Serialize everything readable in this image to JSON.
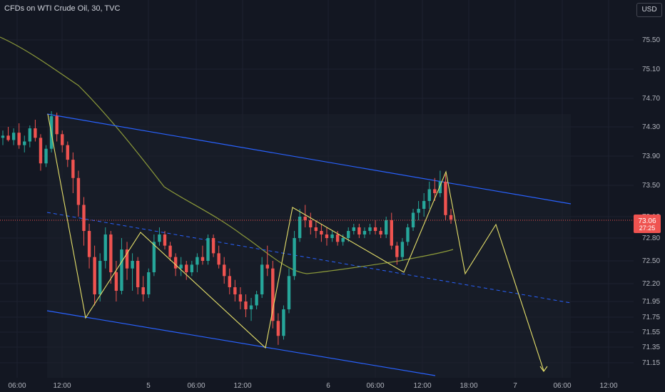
{
  "header": {
    "title": "CFDs on WTI Crude Oil, 30, TVC",
    "currency_button": "USD"
  },
  "chart_data": {
    "type": "candlestick",
    "title": "CFDs on WTI Crude Oil, 30, TVC",
    "y_ticks": [
      "75.50",
      "75.10",
      "74.70",
      "74.30",
      "73.90",
      "73.50",
      "73.10",
      "72.80",
      "72.50",
      "72.20",
      "71.95",
      "71.75",
      "71.55",
      "71.35",
      "71.15"
    ],
    "x_ticks": [
      "06:00",
      "12:00",
      "5",
      "06:00",
      "12:00",
      "6",
      "06:00",
      "12:00",
      "18:00",
      "7",
      "06:00",
      "12:00"
    ],
    "last_price": "73.06",
    "countdown": "27:25",
    "colors": {
      "up": "#26a69a",
      "down": "#ef5350",
      "channel": "#2962ff",
      "ma": "#8c9a3a",
      "zigzag": "#e6e06a",
      "price_line": "#ef5350"
    },
    "candles_ohlc_approx": [
      [
        74.15,
        74.25,
        74.05,
        74.18
      ],
      [
        74.18,
        74.3,
        74.1,
        74.12
      ],
      [
        74.12,
        74.28,
        74.05,
        74.22
      ],
      [
        74.22,
        74.35,
        74.0,
        74.05
      ],
      [
        74.05,
        74.18,
        73.95,
        74.1
      ],
      [
        74.1,
        74.32,
        74.02,
        74.28
      ],
      [
        74.28,
        74.4,
        74.1,
        74.15
      ],
      [
        74.15,
        74.2,
        73.7,
        73.8
      ],
      [
        73.8,
        74.05,
        73.75,
        74.0
      ],
      [
        74.0,
        74.52,
        73.95,
        74.45
      ],
      [
        74.45,
        74.5,
        74.1,
        74.2
      ],
      [
        74.2,
        74.25,
        73.95,
        74.05
      ],
      [
        74.05,
        74.1,
        73.75,
        73.85
      ],
      [
        73.85,
        73.95,
        73.4,
        73.6
      ],
      [
        73.6,
        73.7,
        73.1,
        73.25
      ],
      [
        73.25,
        73.35,
        72.7,
        72.9
      ],
      [
        72.9,
        73.0,
        72.4,
        72.55
      ],
      [
        72.55,
        72.7,
        71.9,
        72.05
      ],
      [
        72.05,
        72.6,
        71.95,
        72.5
      ],
      [
        72.5,
        72.95,
        72.4,
        72.85
      ],
      [
        72.85,
        72.9,
        72.2,
        72.35
      ],
      [
        72.35,
        72.5,
        71.95,
        72.1
      ],
      [
        72.1,
        72.8,
        72.05,
        72.65
      ],
      [
        72.65,
        72.75,
        72.25,
        72.4
      ],
      [
        72.4,
        72.6,
        72.1,
        72.5
      ],
      [
        72.5,
        72.55,
        72.05,
        72.15
      ],
      [
        72.15,
        72.3,
        71.95,
        72.05
      ],
      [
        72.05,
        72.4,
        72.0,
        72.35
      ],
      [
        72.35,
        72.85,
        72.3,
        72.75
      ],
      [
        72.75,
        72.95,
        72.7,
        72.85
      ],
      [
        72.85,
        72.9,
        72.65,
        72.7
      ],
      [
        72.7,
        72.75,
        72.5,
        72.55
      ],
      [
        72.55,
        72.6,
        72.3,
        72.4
      ],
      [
        72.4,
        72.55,
        72.3,
        72.45
      ],
      [
        72.45,
        72.5,
        72.25,
        72.35
      ],
      [
        72.35,
        72.5,
        72.3,
        72.45
      ],
      [
        72.45,
        72.6,
        72.35,
        72.55
      ],
      [
        72.55,
        72.7,
        72.45,
        72.5
      ],
      [
        72.5,
        72.85,
        72.45,
        72.8
      ],
      [
        72.8,
        72.85,
        72.55,
        72.6
      ],
      [
        72.6,
        72.7,
        72.4,
        72.45
      ],
      [
        72.45,
        72.55,
        72.2,
        72.3
      ],
      [
        72.3,
        72.4,
        72.05,
        72.15
      ],
      [
        72.15,
        72.25,
        71.95,
        72.05
      ],
      [
        72.05,
        72.15,
        71.85,
        71.95
      ],
      [
        71.95,
        72.05,
        71.75,
        71.85
      ],
      [
        71.85,
        72.0,
        71.7,
        71.9
      ],
      [
        71.9,
        72.1,
        71.85,
        72.05
      ],
      [
        72.05,
        72.55,
        72.0,
        72.45
      ],
      [
        72.45,
        72.7,
        72.3,
        72.4
      ],
      [
        72.4,
        72.5,
        71.6,
        71.7
      ],
      [
        71.7,
        71.8,
        71.38,
        71.5
      ],
      [
        71.5,
        71.9,
        71.45,
        71.85
      ],
      [
        71.85,
        72.4,
        71.8,
        72.3
      ],
      [
        72.3,
        72.9,
        72.25,
        72.8
      ],
      [
        72.8,
        73.2,
        72.75,
        73.1
      ],
      [
        73.1,
        73.25,
        72.95,
        73.05
      ],
      [
        73.05,
        73.15,
        72.85,
        72.95
      ],
      [
        72.95,
        73.05,
        72.8,
        72.9
      ],
      [
        72.9,
        73.0,
        72.75,
        72.85
      ],
      [
        72.85,
        72.95,
        72.7,
        72.8
      ],
      [
        72.8,
        72.9,
        72.75,
        72.85
      ],
      [
        72.85,
        72.9,
        72.7,
        72.75
      ],
      [
        72.75,
        72.85,
        72.7,
        72.8
      ],
      [
        72.8,
        72.95,
        72.75,
        72.9
      ],
      [
        72.9,
        73.0,
        72.85,
        72.95
      ],
      [
        72.95,
        73.0,
        72.8,
        72.85
      ],
      [
        72.85,
        72.95,
        72.8,
        72.9
      ],
      [
        72.9,
        73.0,
        72.85,
        72.95
      ],
      [
        72.95,
        73.05,
        72.85,
        72.9
      ],
      [
        72.9,
        72.95,
        72.8,
        72.85
      ],
      [
        72.85,
        73.1,
        72.8,
        73.05
      ],
      [
        73.05,
        73.15,
        72.65,
        72.7
      ],
      [
        72.7,
        72.75,
        72.45,
        72.55
      ],
      [
        72.55,
        72.8,
        72.5,
        72.75
      ],
      [
        72.75,
        73.0,
        72.7,
        72.95
      ],
      [
        72.95,
        73.2,
        72.9,
        73.15
      ],
      [
        73.15,
        73.3,
        73.05,
        73.2
      ],
      [
        73.2,
        73.4,
        73.1,
        73.3
      ],
      [
        73.3,
        73.55,
        73.2,
        73.45
      ],
      [
        73.45,
        73.6,
        73.3,
        73.4
      ],
      [
        73.4,
        73.7,
        73.35,
        73.55
      ],
      [
        73.55,
        73.65,
        73.05,
        73.12
      ],
      [
        73.12,
        73.2,
        73.0,
        73.06
      ]
    ]
  }
}
